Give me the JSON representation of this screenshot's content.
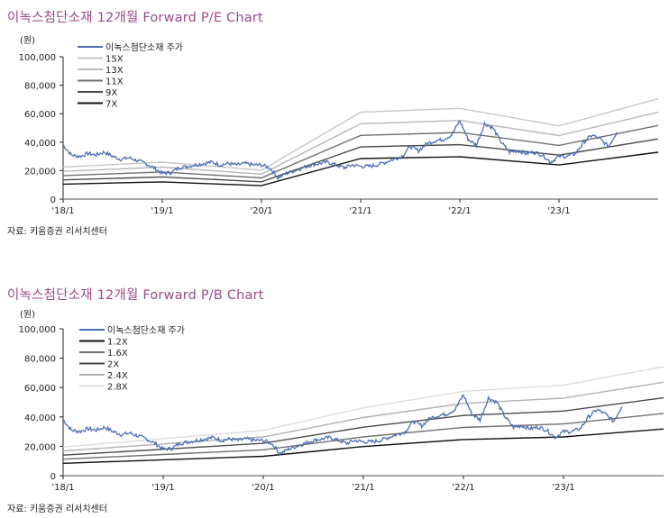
{
  "chart_data": [
    {
      "type": "line",
      "title": "이녹스첨단소재  12개월  Forward P/E Chart",
      "ylabel": "(원)",
      "source": "자료: 키움증권 리서치센터",
      "ylim": [
        0,
        100000
      ],
      "yticks": [
        "0",
        "20,000",
        "40,000",
        "60,000",
        "80,000",
        "100,000"
      ],
      "xticks": [
        "'18/1",
        "'19/1",
        "'20/1",
        "'21/1",
        "'22/1",
        "'23/1"
      ],
      "legend": [
        "이녹스첨단소재 주가",
        "15X",
        "13X",
        "11X",
        "9X",
        "7X"
      ],
      "band_knots_years": [
        2018,
        2019,
        2020,
        2021,
        2022,
        2023,
        2024
      ],
      "eps": [
        1500,
        1730,
        1350,
        4070,
        4250,
        3430,
        4700
      ],
      "multiples": [
        15,
        13,
        11,
        9,
        7
      ],
      "band_colors": [
        "#c8c8c8",
        "#b8b8b8",
        "#707070",
        "#4a4a4a",
        "#111111"
      ],
      "price_color": "#4a6fb5",
      "price_start": "2018/1",
      "price_monthly": [
        38000,
        31000,
        30000,
        32000,
        31000,
        33000,
        30000,
        28000,
        29000,
        27000,
        25000,
        22000,
        18000,
        18500,
        22000,
        23000,
        24000,
        25000,
        26000,
        24000,
        25000,
        24000,
        25000,
        24000,
        24000,
        22000,
        15000,
        18000,
        20000,
        22000,
        24000,
        25000,
        26000,
        24000,
        22000,
        24000,
        23000,
        23000,
        24000,
        26000,
        28000,
        30000,
        37000,
        34000,
        39000,
        41000,
        42000,
        45000,
        55000,
        42000,
        38000,
        53000,
        50000,
        40000,
        33000,
        34000,
        32000,
        33000,
        31000,
        26000,
        30000,
        30000,
        32000,
        40000,
        45000,
        42000,
        37000,
        47000
      ]
    },
    {
      "type": "line",
      "title": "이녹스첨단소재  12개월  Forward P/B Chart",
      "ylabel": "(원)",
      "source": "자료: 키움증권 리서치센터",
      "ylim": [
        0,
        100000
      ],
      "yticks": [
        "0",
        "20,000",
        "40,000",
        "60,000",
        "80,000",
        "100,000"
      ],
      "xticks": [
        "'18/1",
        "'19/1",
        "'20/1",
        "'21/1",
        "'22/1",
        "'23/1"
      ],
      "legend": [
        "이녹스첨단소재 주가",
        "1.2X",
        "1.6X",
        "2X",
        "2.4X",
        "2.8X"
      ],
      "band_knots_years": [
        2018,
        2019,
        2020,
        2021,
        2022,
        2023,
        2024
      ],
      "bps": [
        7000,
        9000,
        11000,
        16500,
        20500,
        22000,
        26500
      ],
      "multiples": [
        1.2,
        1.6,
        2,
        2.4,
        2.8
      ],
      "band_colors": [
        "#111111",
        "#707070",
        "#4a4a4a",
        "#b0b0b0",
        "#dcdcdc"
      ],
      "price_color": "#4a6fb5",
      "price_start": "2018/1",
      "price_monthly": [
        38000,
        31000,
        30000,
        32000,
        31000,
        33000,
        30000,
        28000,
        29000,
        27000,
        25000,
        22000,
        18000,
        18500,
        22000,
        23000,
        24000,
        25000,
        26000,
        24000,
        25000,
        24000,
        25000,
        24000,
        24000,
        22000,
        15000,
        18000,
        20000,
        22000,
        24000,
        25000,
        26000,
        24000,
        22000,
        24000,
        23000,
        23000,
        24000,
        26000,
        28000,
        30000,
        37000,
        34000,
        39000,
        41000,
        42000,
        45000,
        55000,
        42000,
        38000,
        53000,
        50000,
        40000,
        33000,
        34000,
        32000,
        33000,
        31000,
        26000,
        30000,
        30000,
        32000,
        40000,
        45000,
        42000,
        37000,
        47000
      ]
    }
  ]
}
